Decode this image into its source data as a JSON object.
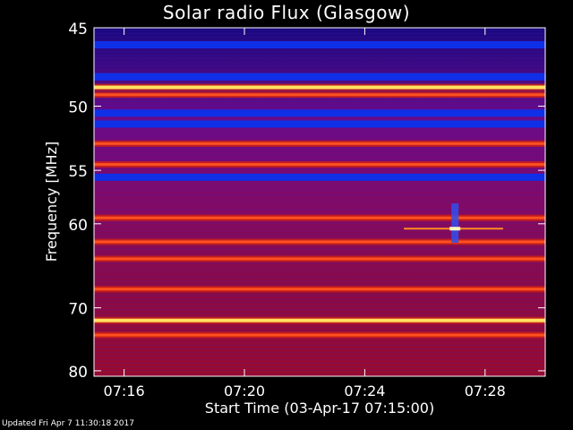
{
  "chart_data": {
    "type": "heatmap",
    "title": "Solar radio Flux (Glasgow)",
    "ylabel": "Frequency [MHz]",
    "xlabel": "Start Time (03-Apr-17 07:15:00)",
    "x_tick_labels": [
      "07:16",
      "07:20",
      "07:24",
      "07:28"
    ],
    "x_ticks_minutes_after_start": [
      1,
      5,
      9,
      13
    ],
    "xlim_minutes_after_start": [
      0,
      15
    ],
    "y_tick_labels": [
      "45",
      "50",
      "55",
      "60",
      "70",
      "80"
    ],
    "y_ticks": [
      45,
      50,
      55,
      60,
      70,
      80
    ],
    "ylim": [
      45,
      81
    ],
    "y_scale": "reciprocal (1/f)",
    "colormap": "blue-purple-red-yellow-white (low to high flux)",
    "bright_bands_mhz": [
      48.7,
      49.2,
      52.8,
      54.5,
      59.4,
      61.9,
      63.8,
      67.5,
      71.8,
      74.0
    ],
    "dark_bands_mhz": [
      46.0,
      48.0,
      50.5,
      51.3,
      55.6
    ],
    "burst": {
      "time": "07:27",
      "frequency_range_mhz": [
        58.0,
        62.0
      ],
      "peak_mhz": 60.5
    },
    "grid": false,
    "legend": "none"
  },
  "footer": "Updated Fri Apr  7 11:30:18 2017"
}
